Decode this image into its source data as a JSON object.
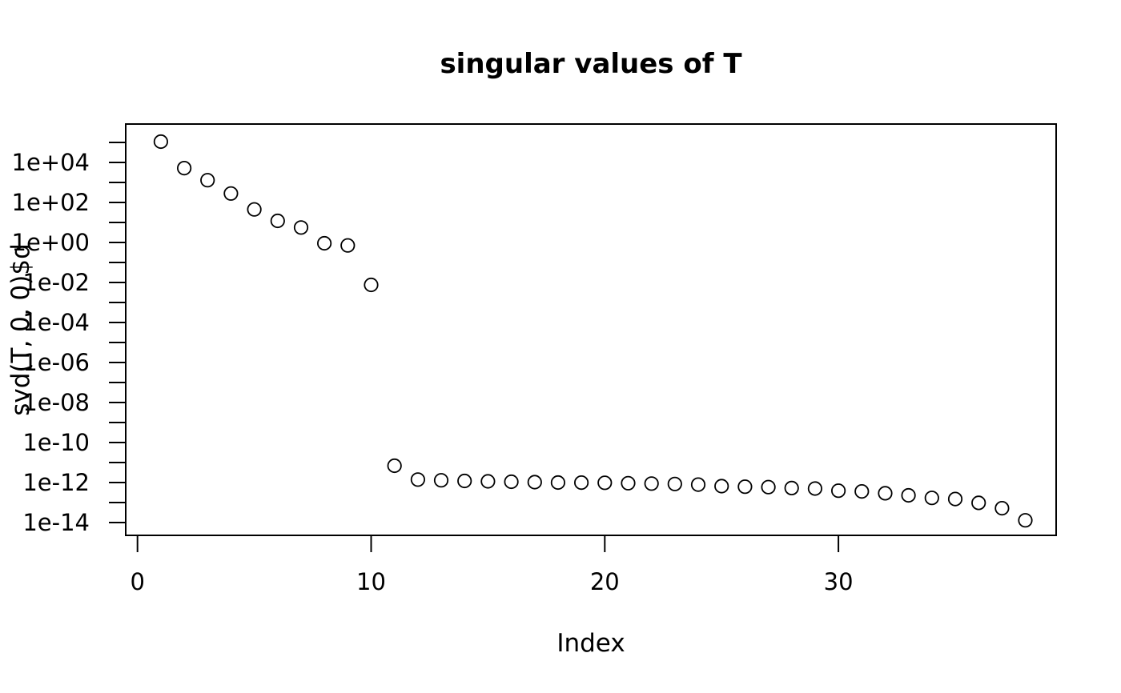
{
  "figure": {
    "title": "singular values of T",
    "xlabel": "Index",
    "ylabel": "svd(T, 0, 0)$d"
  },
  "chart_data": {
    "type": "scatter",
    "title": "singular values of T",
    "xlabel": "Index",
    "ylabel": "svd(T, 0, 0)$d",
    "x_scale": "linear",
    "y_scale": "log",
    "xlim": [
      -0.5,
      39.4
    ],
    "ylim": [
      2.5e-15,
      800000.0
    ],
    "grid": false,
    "legend": null,
    "marker": "open-circle",
    "colors": {
      "foreground": "#000000",
      "background": "#ffffff"
    },
    "x_ticks": {
      "values": [
        0,
        10,
        20,
        30
      ],
      "labels": [
        "0",
        "10",
        "20",
        "30"
      ]
    },
    "y_ticks": {
      "labeled_exponents": [
        4,
        2,
        0,
        -2,
        -4,
        -6,
        -8,
        -10,
        -12,
        -14
      ],
      "labels": [
        "1e+04",
        "1e+02",
        "1e+00",
        "1e-02",
        "1e-04",
        "1e-06",
        "1e-08",
        "1e-10",
        "1e-12",
        "1e-14"
      ],
      "minor_exponents": [
        5,
        3,
        1,
        -1,
        -3,
        -5,
        -7,
        -9,
        -11,
        -13
      ]
    },
    "series": [
      {
        "name": "singular values",
        "x": [
          1,
          2,
          3,
          4,
          5,
          6,
          7,
          8,
          9,
          10,
          11,
          12,
          13,
          14,
          15,
          16,
          17,
          18,
          19,
          20,
          21,
          22,
          23,
          24,
          25,
          26,
          27,
          28,
          29,
          30,
          31,
          32,
          33,
          34,
          35,
          36,
          37,
          38
        ],
        "y": [
          110000.0,
          5200.0,
          1300.0,
          280.0,
          45.0,
          12.0,
          5.6,
          0.91,
          0.71,
          0.0076,
          6.9e-12,
          1.4e-12,
          1.3e-12,
          1.2e-12,
          1.15e-12,
          1.1e-12,
          1.05e-12,
          1e-12,
          9.9e-13,
          9.7e-13,
          9.3e-13,
          8.9e-13,
          8.5e-13,
          7.9e-13,
          6.6e-13,
          6.2e-13,
          5.9e-13,
          5.3e-13,
          5e-13,
          3.9e-13,
          3.6e-13,
          2.9e-13,
          2.3e-13,
          1.7e-13,
          1.5e-13,
          9.6e-14,
          5.2e-14,
          1.3e-14
        ]
      }
    ]
  }
}
